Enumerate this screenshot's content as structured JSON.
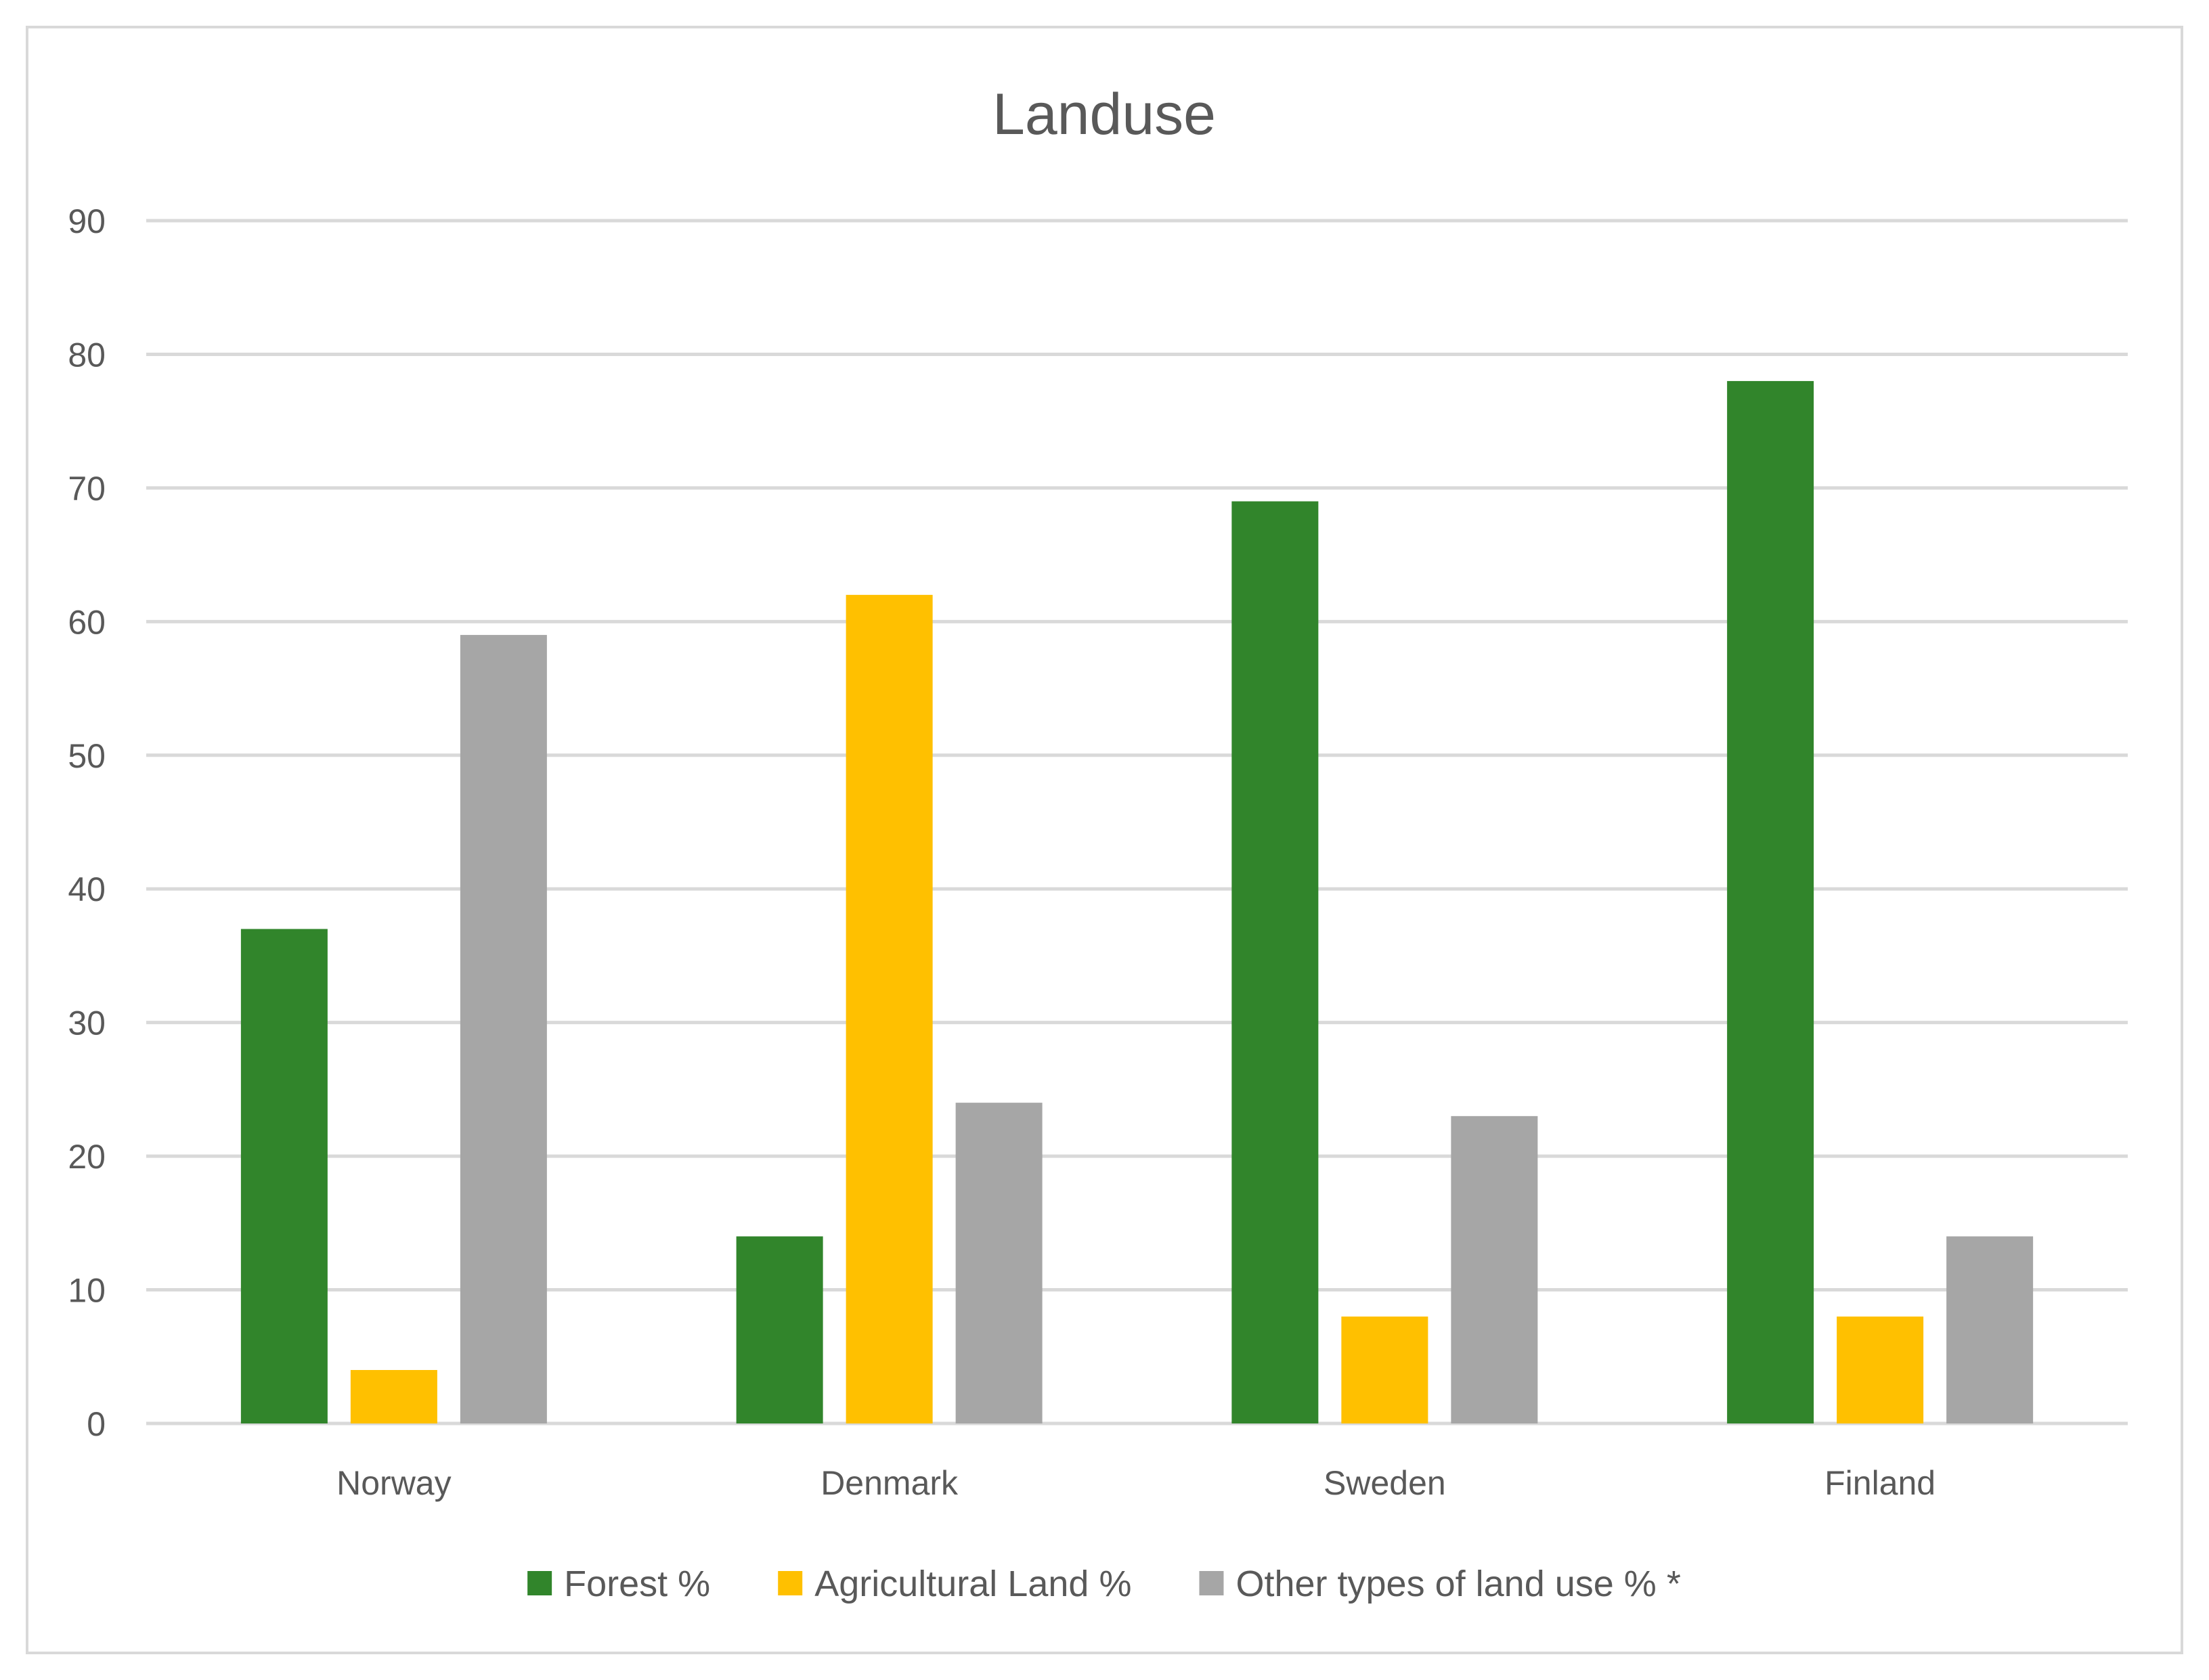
{
  "chart_data": {
    "type": "bar",
    "title": "Landuse",
    "xlabel": "",
    "ylabel": "",
    "categories": [
      "Norway",
      "Denmark",
      "Sweden",
      "Finland"
    ],
    "series": [
      {
        "name": "Forest %",
        "values": [
          37,
          14,
          69,
          78
        ],
        "color": "#31852b"
      },
      {
        "name": "Agricultural Land %",
        "values": [
          4,
          62,
          8,
          8
        ],
        "color": "#ffc000"
      },
      {
        "name": "Other types of land use % *",
        "values": [
          59,
          24,
          23,
          14
        ],
        "color": "#a6a6a6"
      }
    ],
    "ylim": [
      0,
      90
    ],
    "yticks": [
      "0",
      "10",
      "20",
      "30",
      "40",
      "50",
      "60",
      "70",
      "80",
      "90"
    ],
    "grid": true,
    "legend_position": "bottom",
    "colors": {
      "gridline": "#d9d9d9",
      "text": "#595959",
      "border": "#d9d9d9"
    }
  }
}
